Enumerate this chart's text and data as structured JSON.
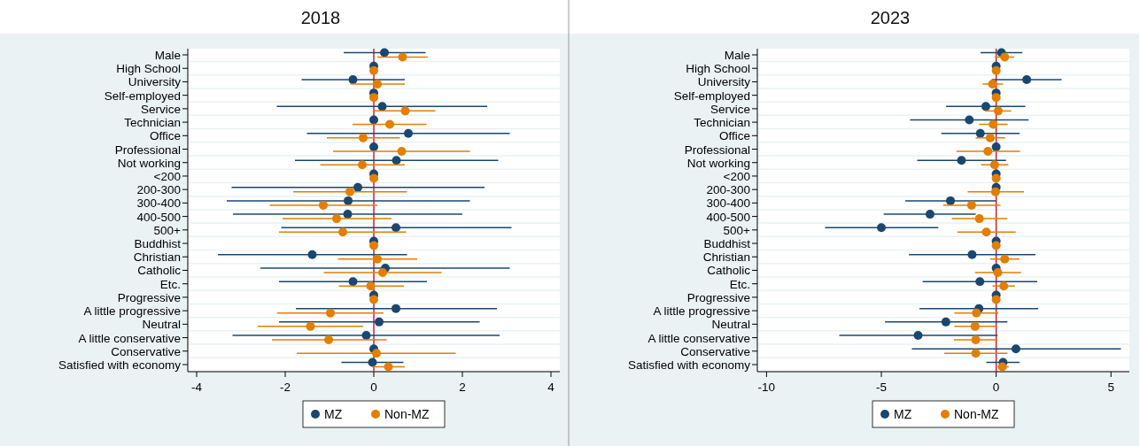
{
  "chart_data": [
    {
      "type": "scatter",
      "orientation": "horizontal",
      "title": "2018",
      "categories": [
        "Male",
        "High School",
        "University",
        "Self-employed",
        "Service",
        "Technician",
        "Office",
        "Professional",
        "Not working",
        "<200",
        "200-300",
        "300-400",
        "400-500",
        "500+",
        "Buddhist",
        "Christian",
        "Catholic",
        "Etc.",
        "Progressive",
        "A little progressive",
        "Neutral",
        "A little conservative",
        "Conservative",
        "Satisfied with economy"
      ],
      "xlim": [
        -4.2,
        4.2
      ],
      "xticks": [
        -4,
        -2,
        0,
        2,
        4
      ],
      "grid": "y",
      "legend": "bottom",
      "marker": "circle",
      "ref_lines": [
        {
          "axis": "x",
          "value": 0,
          "color": "#c8203c"
        }
      ],
      "series": [
        {
          "name": "MZ",
          "color": "#1a476f",
          "values": [
            0.24,
            0,
            -0.47,
            0,
            0.19,
            0,
            0.78,
            0,
            0.51,
            0,
            -0.36,
            -0.58,
            -0.59,
            0.5,
            0,
            -1.39,
            0.26,
            -0.47,
            0,
            0.5,
            0.12,
            -0.17,
            0,
            -0.03
          ],
          "errors": [
            [
              -0.68,
              1.17
            ],
            null,
            [
              -1.63,
              0.7
            ],
            null,
            [
              -2.19,
              2.56
            ],
            null,
            [
              -1.51,
              3.07
            ],
            null,
            [
              -1.78,
              2.81
            ],
            null,
            [
              -3.21,
              2.5
            ],
            [
              -3.32,
              2.17
            ],
            [
              -3.18,
              2.0
            ],
            [
              -2.09,
              3.11
            ],
            null,
            [
              -3.52,
              0.75
            ],
            [
              -2.56,
              3.07
            ],
            [
              -2.14,
              1.2
            ],
            null,
            [
              -1.76,
              2.78
            ],
            [
              -2.14,
              2.39
            ],
            [
              -3.19,
              2.84
            ],
            null,
            [
              -0.73,
              0.67
            ]
          ]
        },
        {
          "name": "Non-MZ",
          "color": "#e37e00",
          "values": [
            0.65,
            0,
            0.08,
            0,
            0.71,
            0.36,
            -0.24,
            0.63,
            -0.26,
            0,
            -0.54,
            -1.14,
            -0.84,
            -0.7,
            0,
            0.08,
            0.2,
            -0.07,
            0,
            -0.98,
            -1.43,
            -1.02,
            0.06,
            0.33
          ],
          "errors": [
            [
              0.08,
              1.22
            ],
            null,
            [
              -0.53,
              0.7
            ],
            null,
            [
              0.01,
              1.39
            ],
            [
              -0.48,
              1.19
            ],
            [
              -1.06,
              0.59
            ],
            [
              -0.92,
              2.17
            ],
            [
              -1.21,
              0.7
            ],
            null,
            [
              -1.82,
              0.75
            ],
            [
              -2.35,
              0.08
            ],
            [
              -2.06,
              0.4
            ],
            [
              -2.14,
              0.73
            ],
            null,
            [
              -0.81,
              0.98
            ],
            [
              -1.13,
              1.53
            ],
            [
              -0.79,
              0.68
            ],
            null,
            [
              -2.18,
              0.22
            ],
            [
              -2.62,
              -0.24
            ],
            [
              -2.3,
              0.29
            ],
            [
              -1.74,
              1.85
            ],
            [
              -0.03,
              0.7
            ]
          ]
        }
      ]
    },
    {
      "type": "scatter",
      "orientation": "horizontal",
      "title": "2023",
      "categories": [
        "Male",
        "High School",
        "University",
        "Self-employed",
        "Service",
        "Technician",
        "Office",
        "Professional",
        "Not working",
        "<200",
        "200-300",
        "300-400",
        "400-500",
        "500+",
        "Buddhist",
        "Christian",
        "Catholic",
        "Etc.",
        "Progressive",
        "A little progressive",
        "Neutral",
        "A little conservative",
        "Conservative",
        "Satisfied with economy"
      ],
      "xlim": [
        -10.4,
        5.8
      ],
      "xticks": [
        -10,
        -5,
        0,
        5
      ],
      "grid": "y",
      "legend": "bottom",
      "marker": "circle",
      "ref_lines": [
        {
          "axis": "x",
          "value": 0,
          "color": "#c8203c"
        }
      ],
      "series": [
        {
          "name": "MZ",
          "color": "#1a476f",
          "values": [
            0.23,
            0,
            1.33,
            0,
            -0.45,
            -1.17,
            -0.69,
            0,
            -1.51,
            0,
            0,
            -1.99,
            -2.88,
            -5.0,
            0,
            -1.05,
            0,
            -0.71,
            0,
            -0.75,
            -2.19,
            -3.4,
            0.86,
            0.3
          ],
          "errors": [
            [
              -0.68,
              1.14
            ],
            null,
            [
              -0.19,
              2.85
            ],
            null,
            [
              -2.18,
              1.27
            ],
            [
              -3.75,
              1.41
            ],
            [
              -2.39,
              1.02
            ],
            null,
            [
              -3.44,
              0.43
            ],
            null,
            null,
            [
              -3.96,
              0
            ],
            [
              -4.9,
              -0.89
            ],
            [
              -7.45,
              -2.52
            ],
            null,
            [
              -3.8,
              1.71
            ],
            null,
            [
              -3.2,
              1.79
            ],
            null,
            [
              -3.34,
              1.83
            ],
            [
              -4.84,
              0.49
            ],
            [
              -6.83,
              0.06
            ],
            [
              -3.67,
              5.43
            ],
            [
              -0.43,
              1.02
            ]
          ]
        },
        {
          "name": "Non-MZ",
          "color": "#e37e00",
          "values": [
            0.37,
            0,
            -0.16,
            0,
            0.09,
            -0.13,
            -0.26,
            -0.36,
            -0.07,
            0,
            -0.03,
            -1.07,
            -0.73,
            -0.43,
            0,
            0.37,
            0.07,
            0.33,
            0,
            -0.86,
            -0.92,
            -0.89,
            -0.89,
            0.27
          ],
          "errors": [
            [
              -0.06,
              0.79
            ],
            null,
            [
              -0.59,
              0.3
            ],
            null,
            [
              -0.49,
              0.65
            ],
            [
              -0.75,
              0.5
            ],
            [
              -0.89,
              0.39
            ],
            [
              -1.73,
              1.04
            ],
            [
              -0.66,
              0.53
            ],
            null,
            [
              -1.24,
              1.21
            ],
            [
              -2.31,
              0.19
            ],
            [
              -1.93,
              0.49
            ],
            [
              -1.69,
              0.85
            ],
            null,
            [
              -0.26,
              1.01
            ],
            [
              -0.92,
              1.08
            ],
            [
              -0.16,
              0.82
            ],
            null,
            [
              -1.82,
              0.09
            ],
            [
              -1.82,
              -0.01
            ],
            [
              -1.84,
              0.06
            ],
            [
              -2.26,
              0.49
            ],
            [
              0.06,
              0.55
            ]
          ]
        }
      ]
    }
  ]
}
